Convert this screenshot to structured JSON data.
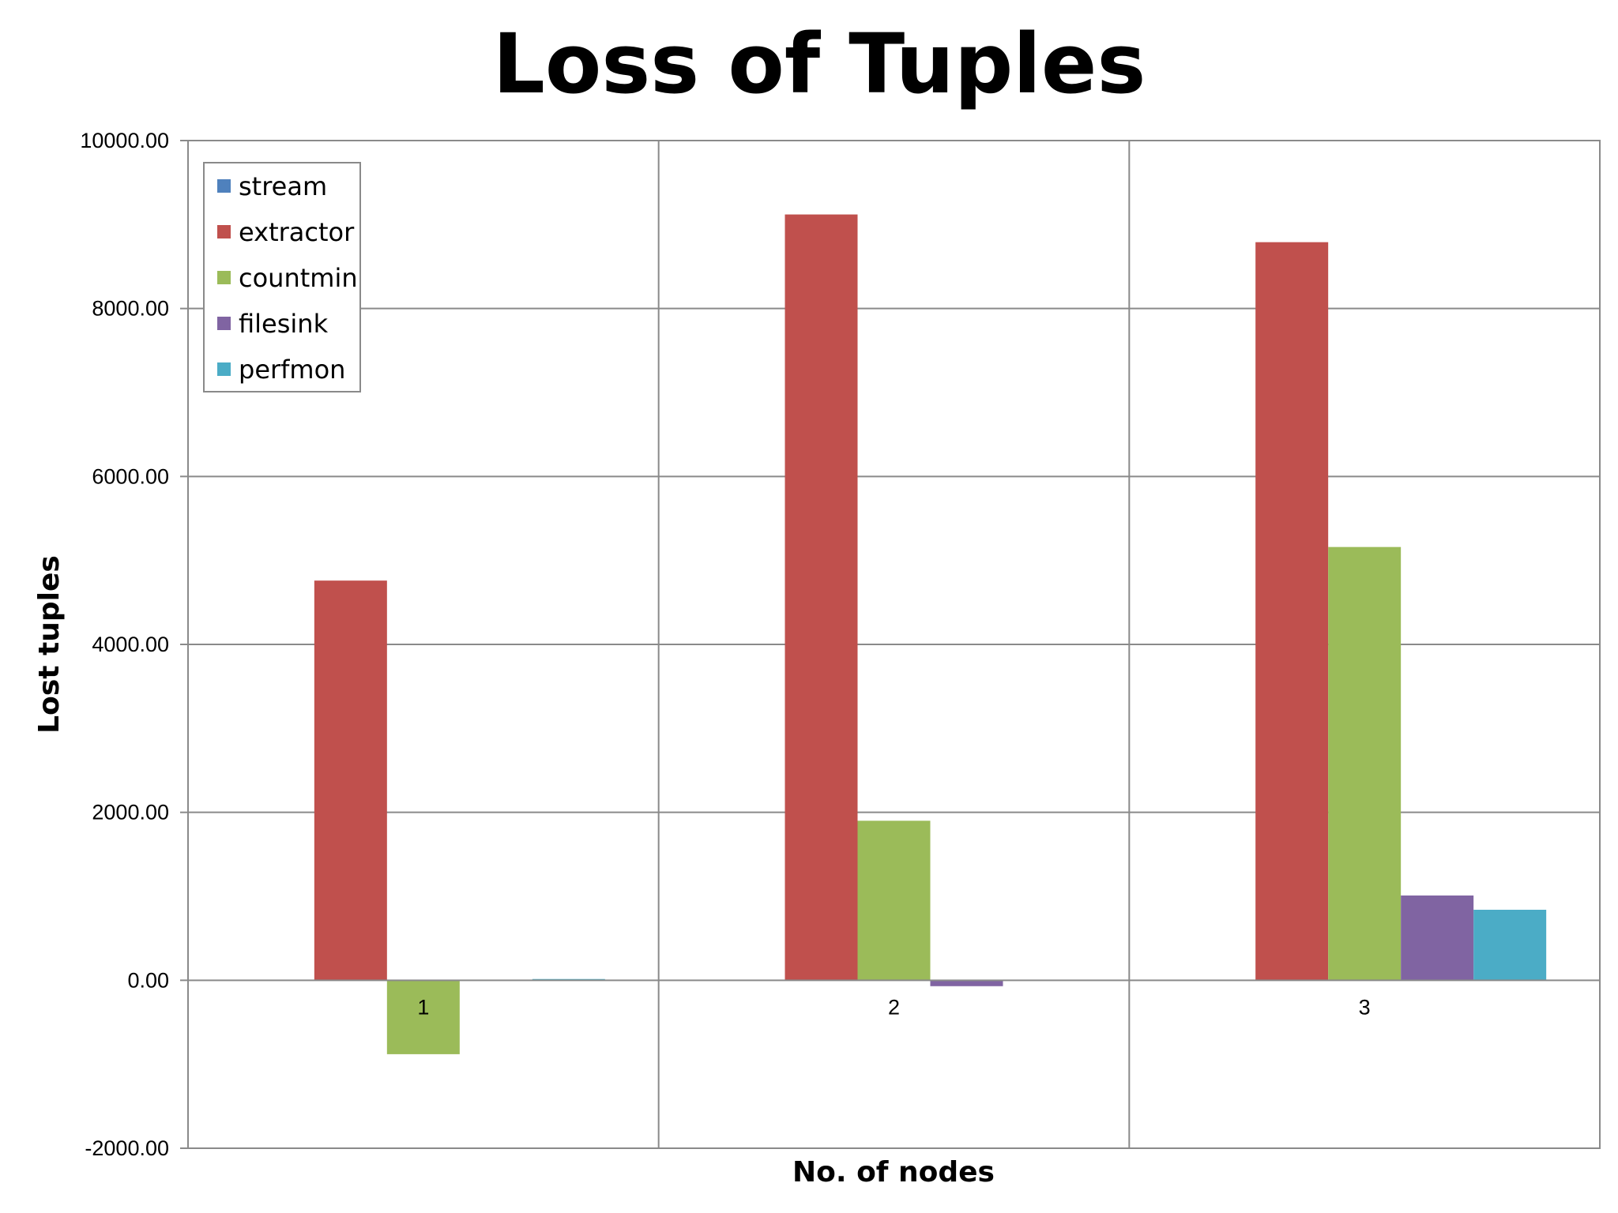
{
  "chart_data": {
    "type": "bar",
    "title": "Loss of Tuples",
    "xlabel": "No. of nodes",
    "ylabel": "Lost tuples",
    "categories": [
      "1",
      "2",
      "3"
    ],
    "ylim": [
      -2000,
      10000
    ],
    "yticks": [
      "-2000.00",
      "0.00",
      "2000.00",
      "4000.00",
      "6000.00",
      "8000.00",
      "10000.00"
    ],
    "ytick_values": [
      -2000,
      0,
      2000,
      4000,
      6000,
      8000,
      10000
    ],
    "grid": true,
    "legend_position": "top-left",
    "series": [
      {
        "name": "stream",
        "color": "#4F81BD",
        "values": [
          0,
          0,
          0
        ]
      },
      {
        "name": "extractor",
        "color": "#C0504D",
        "values": [
          4760,
          9120,
          8790
        ]
      },
      {
        "name": "countmin",
        "color": "#9BBB59",
        "values": [
          -880,
          1900,
          5160
        ]
      },
      {
        "name": "filesink",
        "color": "#8064A2",
        "values": [
          0,
          -70,
          1010
        ]
      },
      {
        "name": "perfmon",
        "color": "#4BACC6",
        "values": [
          15,
          0,
          840
        ]
      }
    ]
  }
}
